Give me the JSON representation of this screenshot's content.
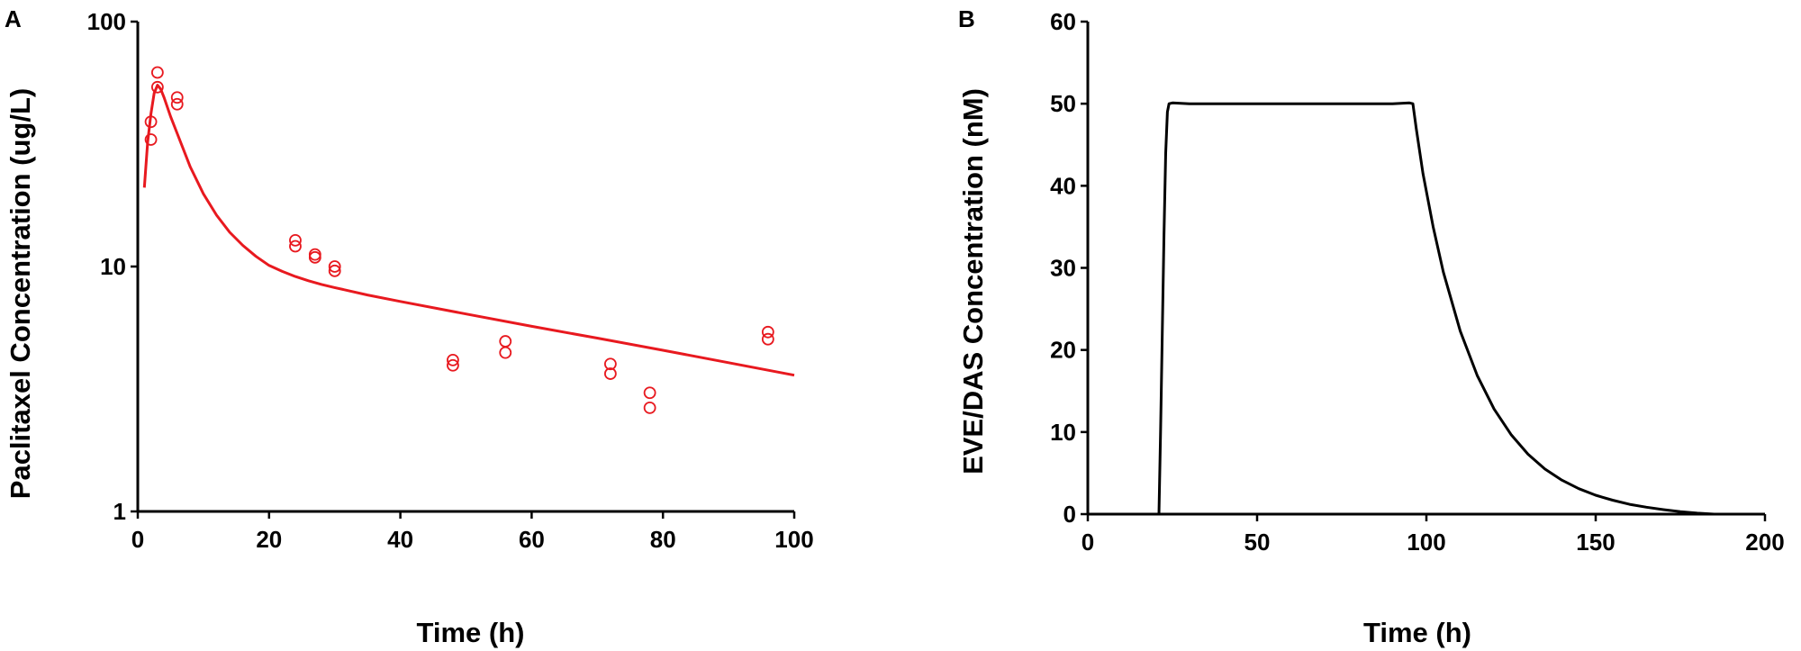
{
  "chart_data": [
    {
      "panel": "A",
      "type": "scatter",
      "title": "",
      "xlabel": "Time (h)",
      "ylabel": "Paclitaxel Concentration (ug/L)",
      "xlim": [
        0,
        100
      ],
      "ylim": [
        1,
        100
      ],
      "yscale": "log",
      "xticks": [
        "0",
        "20",
        "40",
        "60",
        "80",
        "100"
      ],
      "yticks": [
        "1",
        "10",
        "100"
      ],
      "grid": false,
      "legend": "none",
      "color": "#e8191f",
      "observed": {
        "x": [
          2,
          2,
          3,
          3,
          6,
          6,
          24,
          24,
          27,
          27,
          30,
          30,
          48,
          48,
          56,
          56,
          72,
          72,
          78,
          78,
          96,
          96
        ],
        "y": [
          39,
          33,
          62,
          54,
          49,
          46,
          12.8,
          12.1,
          11.2,
          10.9,
          10.0,
          9.6,
          4.15,
          3.95,
          4.95,
          4.45,
          4.0,
          3.65,
          3.05,
          2.65,
          5.4,
          5.05
        ]
      },
      "fitted": {
        "x": [
          1,
          1.5,
          2,
          2.5,
          3,
          3.5,
          4,
          5,
          6,
          8,
          10,
          12,
          14,
          16,
          18,
          20,
          22,
          24,
          26,
          28,
          30,
          35,
          40,
          50,
          60,
          70,
          80,
          90,
          100
        ],
        "y": [
          21,
          32,
          42,
          51,
          55,
          53,
          49,
          41,
          35,
          25.5,
          19.8,
          16.2,
          13.8,
          12.2,
          11.0,
          10.1,
          9.55,
          9.1,
          8.75,
          8.45,
          8.2,
          7.65,
          7.2,
          6.4,
          5.7,
          5.1,
          4.55,
          4.05,
          3.6
        ]
      }
    },
    {
      "panel": "B",
      "type": "line",
      "title": "",
      "xlabel": "Time (h)",
      "ylabel": "EVE/DAS Concentration (nM)",
      "xlim": [
        0,
        200
      ],
      "ylim": [
        0,
        60
      ],
      "xticks": [
        "0",
        "50",
        "100",
        "150",
        "200"
      ],
      "yticks": [
        "0",
        "10",
        "20",
        "30",
        "40",
        "50",
        "60"
      ],
      "grid": false,
      "legend": "none",
      "color": "#000000",
      "series": [
        {
          "x": [
            21,
            21.5,
            22,
            22.5,
            23,
            23.5,
            24,
            25,
            30,
            50,
            70,
            90,
            95,
            96,
            97,
            99,
            102,
            105,
            110,
            115,
            120,
            125,
            130,
            135,
            140,
            145,
            150,
            155,
            160,
            165,
            170,
            175,
            180,
            185
          ],
          "y": [
            0,
            10,
            22,
            34,
            44,
            49,
            50,
            50.1,
            50,
            50,
            50,
            50,
            50.1,
            50,
            47,
            41.5,
            35,
            29.5,
            22.3,
            16.9,
            12.8,
            9.7,
            7.3,
            5.5,
            4.15,
            3.1,
            2.3,
            1.7,
            1.2,
            0.85,
            0.55,
            0.3,
            0.12,
            0
          ]
        }
      ]
    }
  ]
}
